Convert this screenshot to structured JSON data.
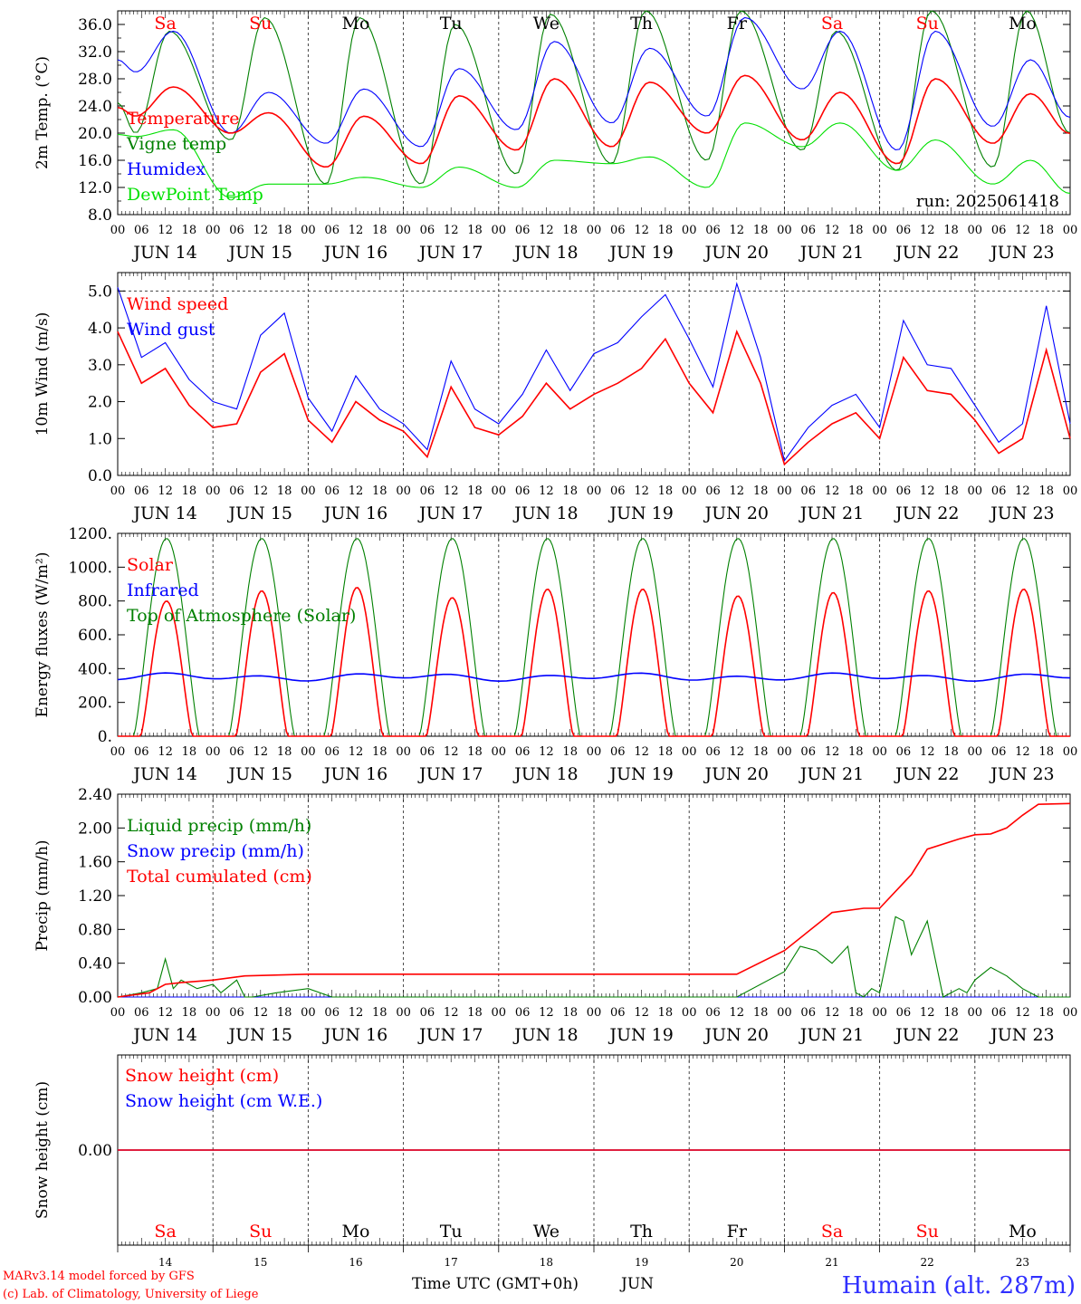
{
  "days": {
    "abbr": [
      "Sa",
      "Su",
      "Mo",
      "Tu",
      "We",
      "Th",
      "Fr",
      "Sa",
      "Su",
      "Mo"
    ],
    "weekend_flags": [
      true,
      true,
      false,
      false,
      false,
      false,
      false,
      true,
      true,
      false
    ],
    "date_labels": [
      "JUN 14",
      "JUN 15",
      "JUN 16",
      "JUN 17",
      "JUN 18",
      "JUN 19",
      "JUN 20",
      "JUN 21",
      "JUN 22",
      "JUN 23"
    ],
    "day_numbers": [
      "14",
      "15",
      "16",
      "17",
      "18",
      "19",
      "20",
      "21",
      "22",
      "23"
    ]
  },
  "hour_labels": [
    "00",
    "06",
    "12",
    "18"
  ],
  "final_hour_label": "00",
  "footer": {
    "credit_line1": "MARv3.14 model forced by GFS",
    "credit_line2": "(c) Lab. of Climatology, University of Liege",
    "time_axis_label": "Time UTC (GMT+0h)",
    "month_label": "JUN",
    "station": "Humain (alt. 287m)"
  },
  "colors": {
    "red": "#ff0000",
    "green": "#008000",
    "blue": "#0000ff",
    "lightgreen": "#00e000",
    "grid": "#555555"
  },
  "chart_data": [
    {
      "type": "line",
      "ylabel": "2m Temp. (°C)",
      "ylim": [
        8,
        38
      ],
      "ytick_labels": [
        "8.0",
        "12.0",
        "16.0",
        "20.0",
        "24.0",
        "28.0",
        "32.0",
        "36.0"
      ],
      "annotation": "run: 2025061418",
      "series": [
        {
          "name": "Temperature",
          "color": "#ff0000",
          "daily_min": [
            22.5,
            20.0,
            15.0,
            15.5,
            17.5,
            18.0,
            20.0,
            19.0,
            15.5,
            18.5,
            18.0
          ],
          "daily_max": [
            26.8,
            23.0,
            22.5,
            25.5,
            28.0,
            27.5,
            28.5,
            26.0,
            28.0,
            25.8
          ]
        },
        {
          "name": "Vigne temp",
          "color": "#008000",
          "daily_min": [
            20.0,
            19.0,
            12.5,
            12.5,
            14.0,
            15.5,
            16.0,
            17.5,
            14.5,
            15.0,
            14.0
          ],
          "daily_max": [
            35.0,
            37.0,
            37.0,
            36.0,
            37.5,
            38.0,
            38.0,
            35.0,
            38.0,
            38.0
          ]
        },
        {
          "name": "Humidex",
          "color": "#0000ff",
          "daily_min": [
            29.0,
            20.0,
            18.5,
            18.0,
            20.5,
            21.5,
            22.5,
            26.5,
            17.5,
            21.0,
            19.5
          ],
          "daily_max": [
            35.0,
            26.0,
            26.5,
            29.5,
            33.5,
            32.5,
            37.0,
            35.0,
            35.0,
            30.8
          ]
        },
        {
          "name": "DewPoint Temp",
          "color": "#00e000",
          "daily_min": [
            19.5,
            10.5,
            12.5,
            12.0,
            12.0,
            15.5,
            12.0,
            18.0,
            14.5,
            12.5,
            9.5
          ],
          "daily_max": [
            20.5,
            12.5,
            13.5,
            15.0,
            16.0,
            16.5,
            21.5,
            21.5,
            19.0,
            16.0
          ]
        }
      ]
    },
    {
      "type": "line",
      "ylabel": "10m Wind (m/s)",
      "ylim": [
        0,
        5.5
      ],
      "ytick_labels": [
        "0.0",
        "1.0",
        "2.0",
        "3.0",
        "4.0",
        "5.0"
      ],
      "series": [
        {
          "name": "Wind speed",
          "color": "#ff0000",
          "x_hours": [
            0,
            6,
            12,
            18,
            24,
            30,
            36,
            42,
            48,
            54,
            60,
            66,
            72,
            78,
            84,
            90,
            96,
            102,
            108,
            114,
            120,
            126,
            132,
            138,
            144,
            150,
            156,
            162,
            168,
            174,
            180,
            186,
            192,
            198,
            204,
            210,
            216,
            222,
            228,
            234,
            240
          ],
          "values": [
            3.9,
            2.5,
            2.9,
            1.9,
            1.3,
            1.4,
            2.8,
            3.3,
            1.5,
            0.9,
            2.0,
            1.5,
            1.2,
            0.5,
            2.4,
            1.3,
            1.1,
            1.6,
            2.5,
            1.8,
            2.2,
            2.5,
            2.9,
            3.7,
            2.5,
            1.7,
            3.9,
            2.5,
            0.3,
            0.9,
            1.4,
            1.7,
            1.0,
            3.2,
            2.3,
            2.2,
            1.5,
            0.6,
            1.0,
            3.4,
            1.0
          ]
        },
        {
          "name": "Wind gust",
          "color": "#0000ff",
          "x_hours": [
            0,
            6,
            12,
            18,
            24,
            30,
            36,
            42,
            48,
            54,
            60,
            66,
            72,
            78,
            84,
            90,
            96,
            102,
            108,
            114,
            120,
            126,
            132,
            138,
            144,
            150,
            156,
            162,
            168,
            174,
            180,
            186,
            192,
            198,
            204,
            210,
            216,
            222,
            228,
            234,
            240
          ],
          "values": [
            5.1,
            3.2,
            3.6,
            2.6,
            2.0,
            1.8,
            3.8,
            4.4,
            2.1,
            1.2,
            2.7,
            1.8,
            1.4,
            0.7,
            3.1,
            1.8,
            1.4,
            2.2,
            3.4,
            2.3,
            3.3,
            3.6,
            4.3,
            4.9,
            3.7,
            2.4,
            5.2,
            3.2,
            0.4,
            1.3,
            1.9,
            2.2,
            1.3,
            4.2,
            3.0,
            2.9,
            1.9,
            0.9,
            1.4,
            4.6,
            1.4
          ]
        }
      ]
    },
    {
      "type": "line",
      "ylabel": "Energy fluxes (W/m²)",
      "ylim": [
        0,
        1200
      ],
      "ytick_labels": [
        "0.",
        "200.",
        "400.",
        "600.",
        "800.",
        "1000.",
        "1200."
      ],
      "series": [
        {
          "name": "Solar",
          "color": "#ff0000",
          "daily_peak": [
            800,
            860,
            880,
            820,
            870,
            870,
            830,
            850,
            860,
            870
          ]
        },
        {
          "name": "Infrared",
          "color": "#0000ff",
          "values_range": [
            300,
            420
          ],
          "typical": 350
        },
        {
          "name": "Top of Atmosphere (Solar)",
          "color": "#008000",
          "daily_peak": [
            1170,
            1170,
            1170,
            1170,
            1170,
            1170,
            1170,
            1170,
            1170,
            1170
          ]
        }
      ]
    },
    {
      "type": "line",
      "ylabel": "Precip (mm/h)",
      "ylim": [
        0,
        2.4
      ],
      "ytick_labels": [
        "0.00",
        "0.40",
        "0.80",
        "1.20",
        "1.60",
        "2.00",
        "2.40"
      ],
      "series": [
        {
          "name": "Liquid precip (mm/h)",
          "color": "#008000",
          "x_hours": [
            0,
            6,
            10,
            12,
            14,
            16,
            20,
            24,
            26,
            30,
            32,
            34,
            40,
            48,
            54,
            60,
            156,
            168,
            172,
            176,
            180,
            184,
            186,
            188,
            190,
            192,
            196,
            198,
            200,
            204,
            208,
            212,
            214,
            216,
            220,
            224,
            228,
            232,
            236,
            240
          ],
          "values": [
            0,
            0.05,
            0.1,
            0.45,
            0.1,
            0.2,
            0.1,
            0.15,
            0.05,
            0.2,
            0,
            0,
            0.05,
            0.1,
            0,
            0,
            0,
            0.3,
            0.6,
            0.55,
            0.4,
            0.6,
            0.05,
            0,
            0.1,
            0.05,
            0.95,
            0.9,
            0.5,
            0.9,
            0,
            0.1,
            0.05,
            0.2,
            0.35,
            0.25,
            0.1,
            0,
            0,
            0
          ]
        },
        {
          "name": "Snow precip (mm/h)",
          "color": "#0000ff",
          "x_hours": [
            0,
            240
          ],
          "values": [
            0,
            0
          ]
        },
        {
          "name": "Total cumulated (cm)",
          "color": "#ff0000",
          "x_hours": [
            0,
            8,
            12,
            16,
            24,
            32,
            48,
            72,
            156,
            168,
            180,
            188,
            192,
            200,
            204,
            212,
            216,
            220,
            224,
            228,
            232,
            240
          ],
          "values": [
            0,
            0.05,
            0.15,
            0.17,
            0.2,
            0.25,
            0.27,
            0.27,
            0.27,
            0.55,
            1.0,
            1.05,
            1.05,
            1.45,
            1.75,
            1.87,
            1.92,
            1.93,
            2.0,
            2.15,
            2.28,
            2.29
          ]
        }
      ]
    },
    {
      "type": "line",
      "ylabel": "Snow height (cm)",
      "ylim": [
        -1,
        1
      ],
      "ytick_labels": [
        "0.00"
      ],
      "series": [
        {
          "name": "Snow height (cm)",
          "color": "#ff0000",
          "x_hours": [
            0,
            240
          ],
          "values": [
            0,
            0
          ]
        },
        {
          "name": "Snow height (cm W.E.)",
          "color": "#0000ff",
          "x_hours": [
            0,
            240
          ],
          "values": [
            0,
            0
          ]
        }
      ]
    }
  ]
}
